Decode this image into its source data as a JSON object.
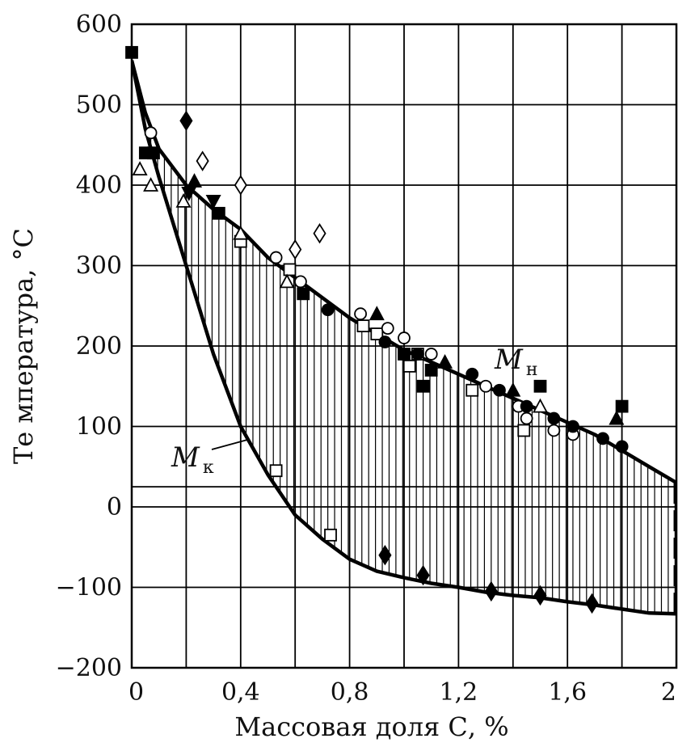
{
  "chart_data": {
    "type": "scatter",
    "title": "",
    "xlabel": "Массовая доля С, %",
    "ylabel": "Те мпература, °С",
    "xlim": [
      0,
      2
    ],
    "ylim": [
      -200,
      600
    ],
    "x_tick_labels": [
      "0",
      "0,4",
      "0,8",
      "1,2",
      "1,6",
      "2"
    ],
    "x_gridlines": [
      0,
      0.2,
      0.4,
      0.6,
      0.8,
      1.0,
      1.2,
      1.4,
      1.6,
      1.8,
      2.0
    ],
    "y_ticks": [
      600,
      500,
      400,
      300,
      200,
      100,
      0,
      -100,
      -200
    ],
    "y_tick_labels": [
      "600",
      "500",
      "400",
      "300",
      "200",
      "100",
      "0",
      "−100",
      "−200"
    ],
    "extra_hlines": [
      25
    ],
    "grid": true,
    "shaded_region": "between Mн and Mк curves, vertical hatching",
    "series": [
      {
        "name": "Mн",
        "label_main": "M",
        "label_sub": "н",
        "kind": "curve",
        "x": [
          0,
          0.05,
          0.1,
          0.2,
          0.3,
          0.4,
          0.5,
          0.6,
          0.7,
          0.8,
          0.9,
          1.0,
          1.1,
          1.2,
          1.3,
          1.4,
          1.5,
          1.6,
          1.7,
          1.8,
          1.9,
          2.0
        ],
        "y": [
          555,
          490,
          445,
          400,
          370,
          345,
          310,
          285,
          260,
          235,
          215,
          195,
          180,
          165,
          150,
          135,
          120,
          105,
          90,
          70,
          50,
          30
        ]
      },
      {
        "name": "Mк",
        "label_main": "M",
        "label_sub": "к",
        "kind": "curve",
        "x": [
          0,
          0.05,
          0.1,
          0.2,
          0.3,
          0.4,
          0.5,
          0.6,
          0.7,
          0.8,
          0.9,
          1.0,
          1.1,
          1.2,
          1.3,
          1.4,
          1.5,
          1.6,
          1.7,
          1.8,
          1.9,
          2.0
        ],
        "y": [
          555,
          470,
          410,
          300,
          190,
          100,
          40,
          -10,
          -40,
          -65,
          -80,
          -88,
          -95,
          -100,
          -106,
          -110,
          -113,
          -118,
          -122,
          -127,
          -132,
          -133
        ]
      },
      {
        "name": "",
        "marker": "filled-square",
        "x": [
          0.0,
          0.05,
          0.08,
          0.32,
          0.63,
          1.0,
          1.07,
          1.1,
          1.5,
          1.8
        ],
        "y": [
          565,
          440,
          440,
          365,
          265,
          190,
          150,
          170,
          150,
          125
        ]
      },
      {
        "name": "",
        "marker": "open-square",
        "x": [
          0.4,
          0.58,
          0.53,
          0.73,
          0.85,
          0.9,
          1.02,
          1.05,
          1.25,
          1.44
        ],
        "y": [
          330,
          295,
          45,
          -35,
          225,
          215,
          175,
          190,
          145,
          95
        ]
      },
      {
        "name": "",
        "marker": "open-circle",
        "x": [
          0.07,
          0.53,
          0.62,
          0.84,
          0.94,
          1.0,
          1.1,
          1.3,
          1.42,
          1.45,
          1.55,
          1.62
        ],
        "y": [
          465,
          310,
          280,
          240,
          222,
          210,
          190,
          150,
          125,
          110,
          95,
          90
        ]
      },
      {
        "name": "",
        "marker": "filled-circle",
        "x": [
          0.72,
          0.93,
          1.05,
          1.25,
          1.35,
          1.45,
          1.55,
          1.62,
          1.73,
          1.8
        ],
        "y": [
          245,
          205,
          190,
          165,
          145,
          125,
          110,
          100,
          85,
          75
        ]
      },
      {
        "name": "",
        "marker": "open-triangle",
        "x": [
          0.03,
          0.07,
          0.19,
          0.4,
          0.57,
          1.5
        ],
        "y": [
          420,
          400,
          380,
          340,
          280,
          125
        ]
      },
      {
        "name": "",
        "marker": "filled-triangle",
        "x": [
          0.23,
          0.9,
          1.15,
          1.4,
          1.78
        ],
        "y": [
          405,
          240,
          180,
          145,
          110
        ]
      },
      {
        "name": "",
        "marker": "filled-inverted-triangle",
        "x": [
          0.21,
          0.3
        ],
        "y": [
          390,
          380
        ]
      },
      {
        "name": "",
        "marker": "open-diamond",
        "x": [
          0.26,
          0.4,
          0.6,
          0.69
        ],
        "y": [
          430,
          400,
          320,
          340
        ]
      },
      {
        "name": "",
        "marker": "filled-diamond",
        "x": [
          0.2,
          0.93,
          1.07,
          1.32,
          1.5,
          1.69
        ],
        "y": [
          480,
          -60,
          -85,
          -105,
          -110,
          -120
        ]
      }
    ]
  }
}
